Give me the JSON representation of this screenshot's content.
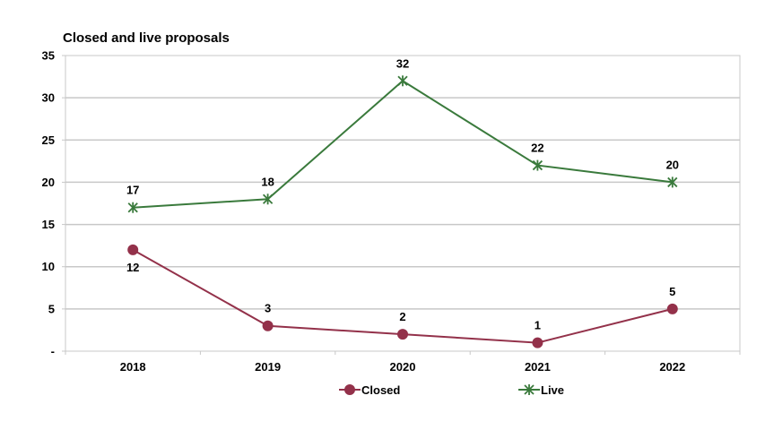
{
  "chart_data": {
    "type": "line",
    "title": "Closed and live proposals",
    "xlabel": "",
    "ylabel": "",
    "categories": [
      "2018",
      "2019",
      "2020",
      "2021",
      "2022"
    ],
    "series": [
      {
        "name": "Closed",
        "values": [
          12,
          3,
          2,
          1,
          5
        ],
        "color": "#93314A",
        "marker": "circle"
      },
      {
        "name": "Live",
        "values": [
          17,
          18,
          32,
          22,
          20
        ],
        "color": "#3A7A3C",
        "marker": "asterisk"
      }
    ],
    "ylim": [
      0,
      35
    ],
    "yticks": [
      "-",
      "5",
      "10",
      "15",
      "20",
      "25",
      "30",
      "35"
    ],
    "grid": true,
    "legend_position": "bottom"
  }
}
